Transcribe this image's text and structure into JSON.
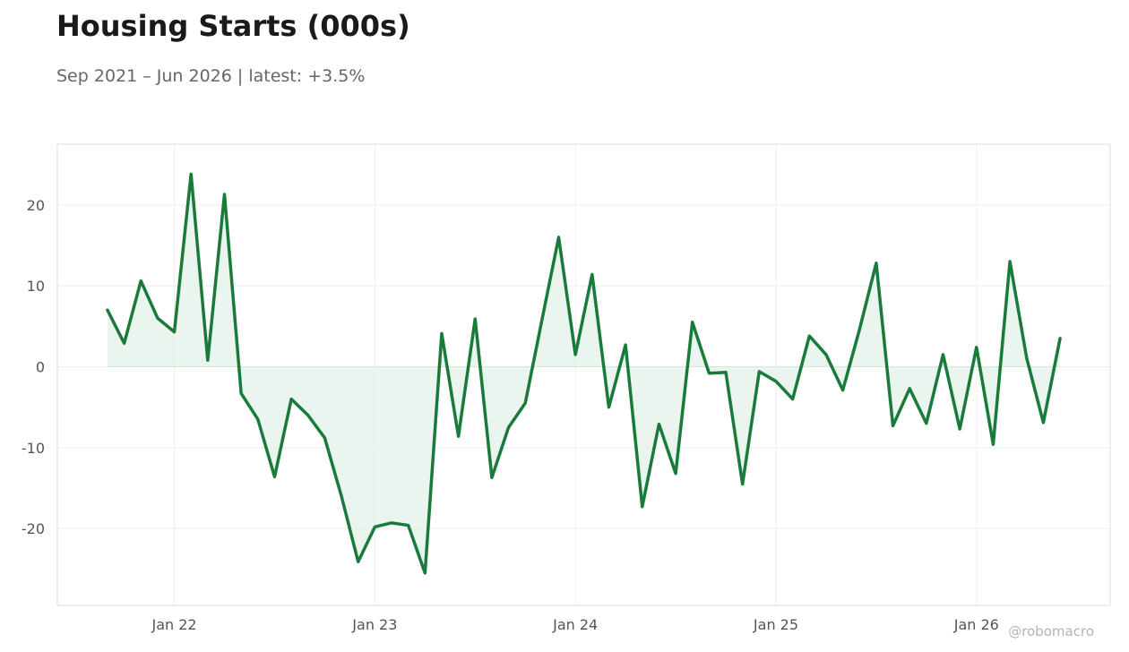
{
  "title": "Housing Starts (000s)",
  "subtitle": "Sep 2021 – Jun 2026 | latest: +3.5%",
  "watermark": "@robomacro",
  "colors": {
    "line": "#1a7a3c",
    "fill": "#e3f2ea",
    "grid": "#eeeeee",
    "frame": "#dddddd",
    "zero_line": "#cfe6d8"
  },
  "chart_data": {
    "type": "area",
    "start_month": "2021-09",
    "end_month": "2026-06",
    "values": [
      7.0,
      2.9,
      10.6,
      6.0,
      4.3,
      23.8,
      0.8,
      21.3,
      -3.3,
      -6.5,
      -13.6,
      -4.0,
      -6.0,
      -8.8,
      -16.0,
      -24.1,
      -19.8,
      -19.3,
      -19.6,
      -25.5,
      4.1,
      -8.6,
      5.9,
      -13.7,
      -7.5,
      -4.5,
      5.8,
      16.0,
      1.5,
      11.4,
      -5.0,
      2.7,
      -17.3,
      -7.1,
      -13.2,
      5.5,
      -0.8,
      -0.7,
      -14.5,
      -0.6,
      -1.8,
      -4.0,
      3.8,
      1.5,
      -2.9,
      4.6,
      12.8,
      -7.3,
      -2.7,
      -7.0,
      1.5,
      -7.7,
      2.4,
      -9.6,
      13.0,
      1.1,
      -6.9,
      3.5
    ],
    "x_ticks": [
      {
        "date": "2022-01",
        "label": "Jan 22"
      },
      {
        "date": "2023-01",
        "label": "Jan 23"
      },
      {
        "date": "2024-01",
        "label": "Jan 24"
      },
      {
        "date": "2025-01",
        "label": "Jan 25"
      },
      {
        "date": "2026-01",
        "label": "Jan 26"
      }
    ],
    "y_ticks": [
      20,
      10,
      0,
      -10,
      -20
    ],
    "ylim": [
      -29.5,
      27.5
    ],
    "xlim": [
      "2021-06",
      "2026-09"
    ],
    "grid": true,
    "legend": "none"
  }
}
